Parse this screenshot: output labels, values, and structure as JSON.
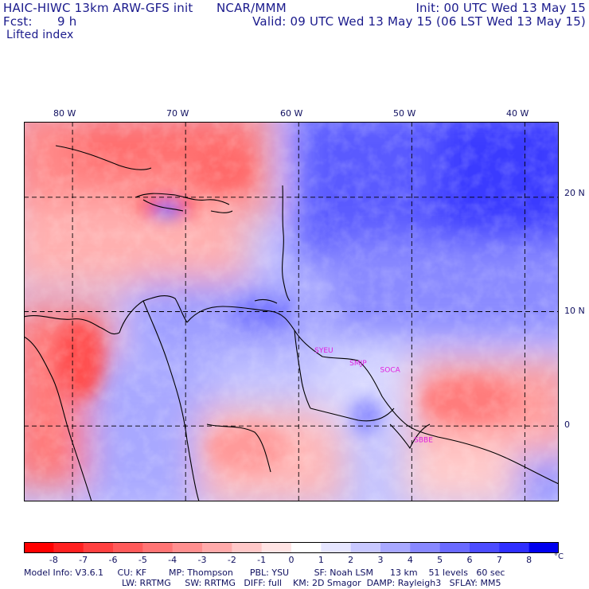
{
  "header": {
    "model_title": "HAIC-HIWC 13km ARW-GFS init",
    "org": "NCAR/MMM",
    "init": "Init: 00 UTC Wed 13 May 15",
    "fcst_label": "Fcst:",
    "fcst_value": "9 h",
    "valid": "Valid: 09 UTC Wed 13 May 15 (06 LST Wed 13 May 15)",
    "field_name": "Lifted index"
  },
  "axes": {
    "lon_labels": [
      "80 W",
      "70 W",
      "60 W",
      "50 W",
      "40 W"
    ],
    "lon_values": [
      -80,
      -70,
      -60,
      -50,
      -40
    ],
    "lat_labels": [
      "20 N",
      "10 N",
      "0"
    ],
    "lat_values": [
      20,
      10,
      0
    ],
    "lon_range": [
      -84.3,
      -37.0
    ],
    "lat_range": [
      -6.6,
      26.6
    ]
  },
  "stations": [
    {
      "label": "SYEU",
      "lon": -58.6,
      "lat": 6.4
    },
    {
      "label": "SMJP",
      "lon": -55.5,
      "lat": 5.3
    },
    {
      "label": "SOCA",
      "lon": -52.8,
      "lat": 4.7
    },
    {
      "label": "SBBE",
      "lon": -49.8,
      "lat": -1.4
    }
  ],
  "colorbar": {
    "labels": [
      "-8",
      "-7",
      "-6",
      "-5",
      "-4",
      "-3",
      "-2",
      "-1",
      "0",
      "1",
      "2",
      "3",
      "4",
      "5",
      "6",
      "7",
      "8"
    ],
    "unit": "°C",
    "colors": [
      "#ff0000",
      "#ff2020",
      "#ff4040",
      "#ff5a5a",
      "#ff7474",
      "#ff8f8f",
      "#ffaaaa",
      "#ffc8c8",
      "#ffe4e4",
      "#ffffff",
      "#e6e6ff",
      "#c8c8ff",
      "#a8a8ff",
      "#8888ff",
      "#6a6aff",
      "#4c4cff",
      "#2e2eff",
      "#0000ee"
    ]
  },
  "model_info": {
    "line1": "Model Info: V3.6.1     CU: KF        MP: Thompson      PBL: YSU         SF: Noah LSM      13 km    51 levels   60 sec",
    "line2": "LW: RRTMG     SW: RRTMG   DIFF: full    KM: 2D Smagor  DAMP: Rayleigh3   SFLAY: MM5"
  },
  "colors": {
    "header_text": "#1a1a8c",
    "station_label": "#e020e0",
    "coast": "#000000",
    "contour": "#8b0000"
  }
}
